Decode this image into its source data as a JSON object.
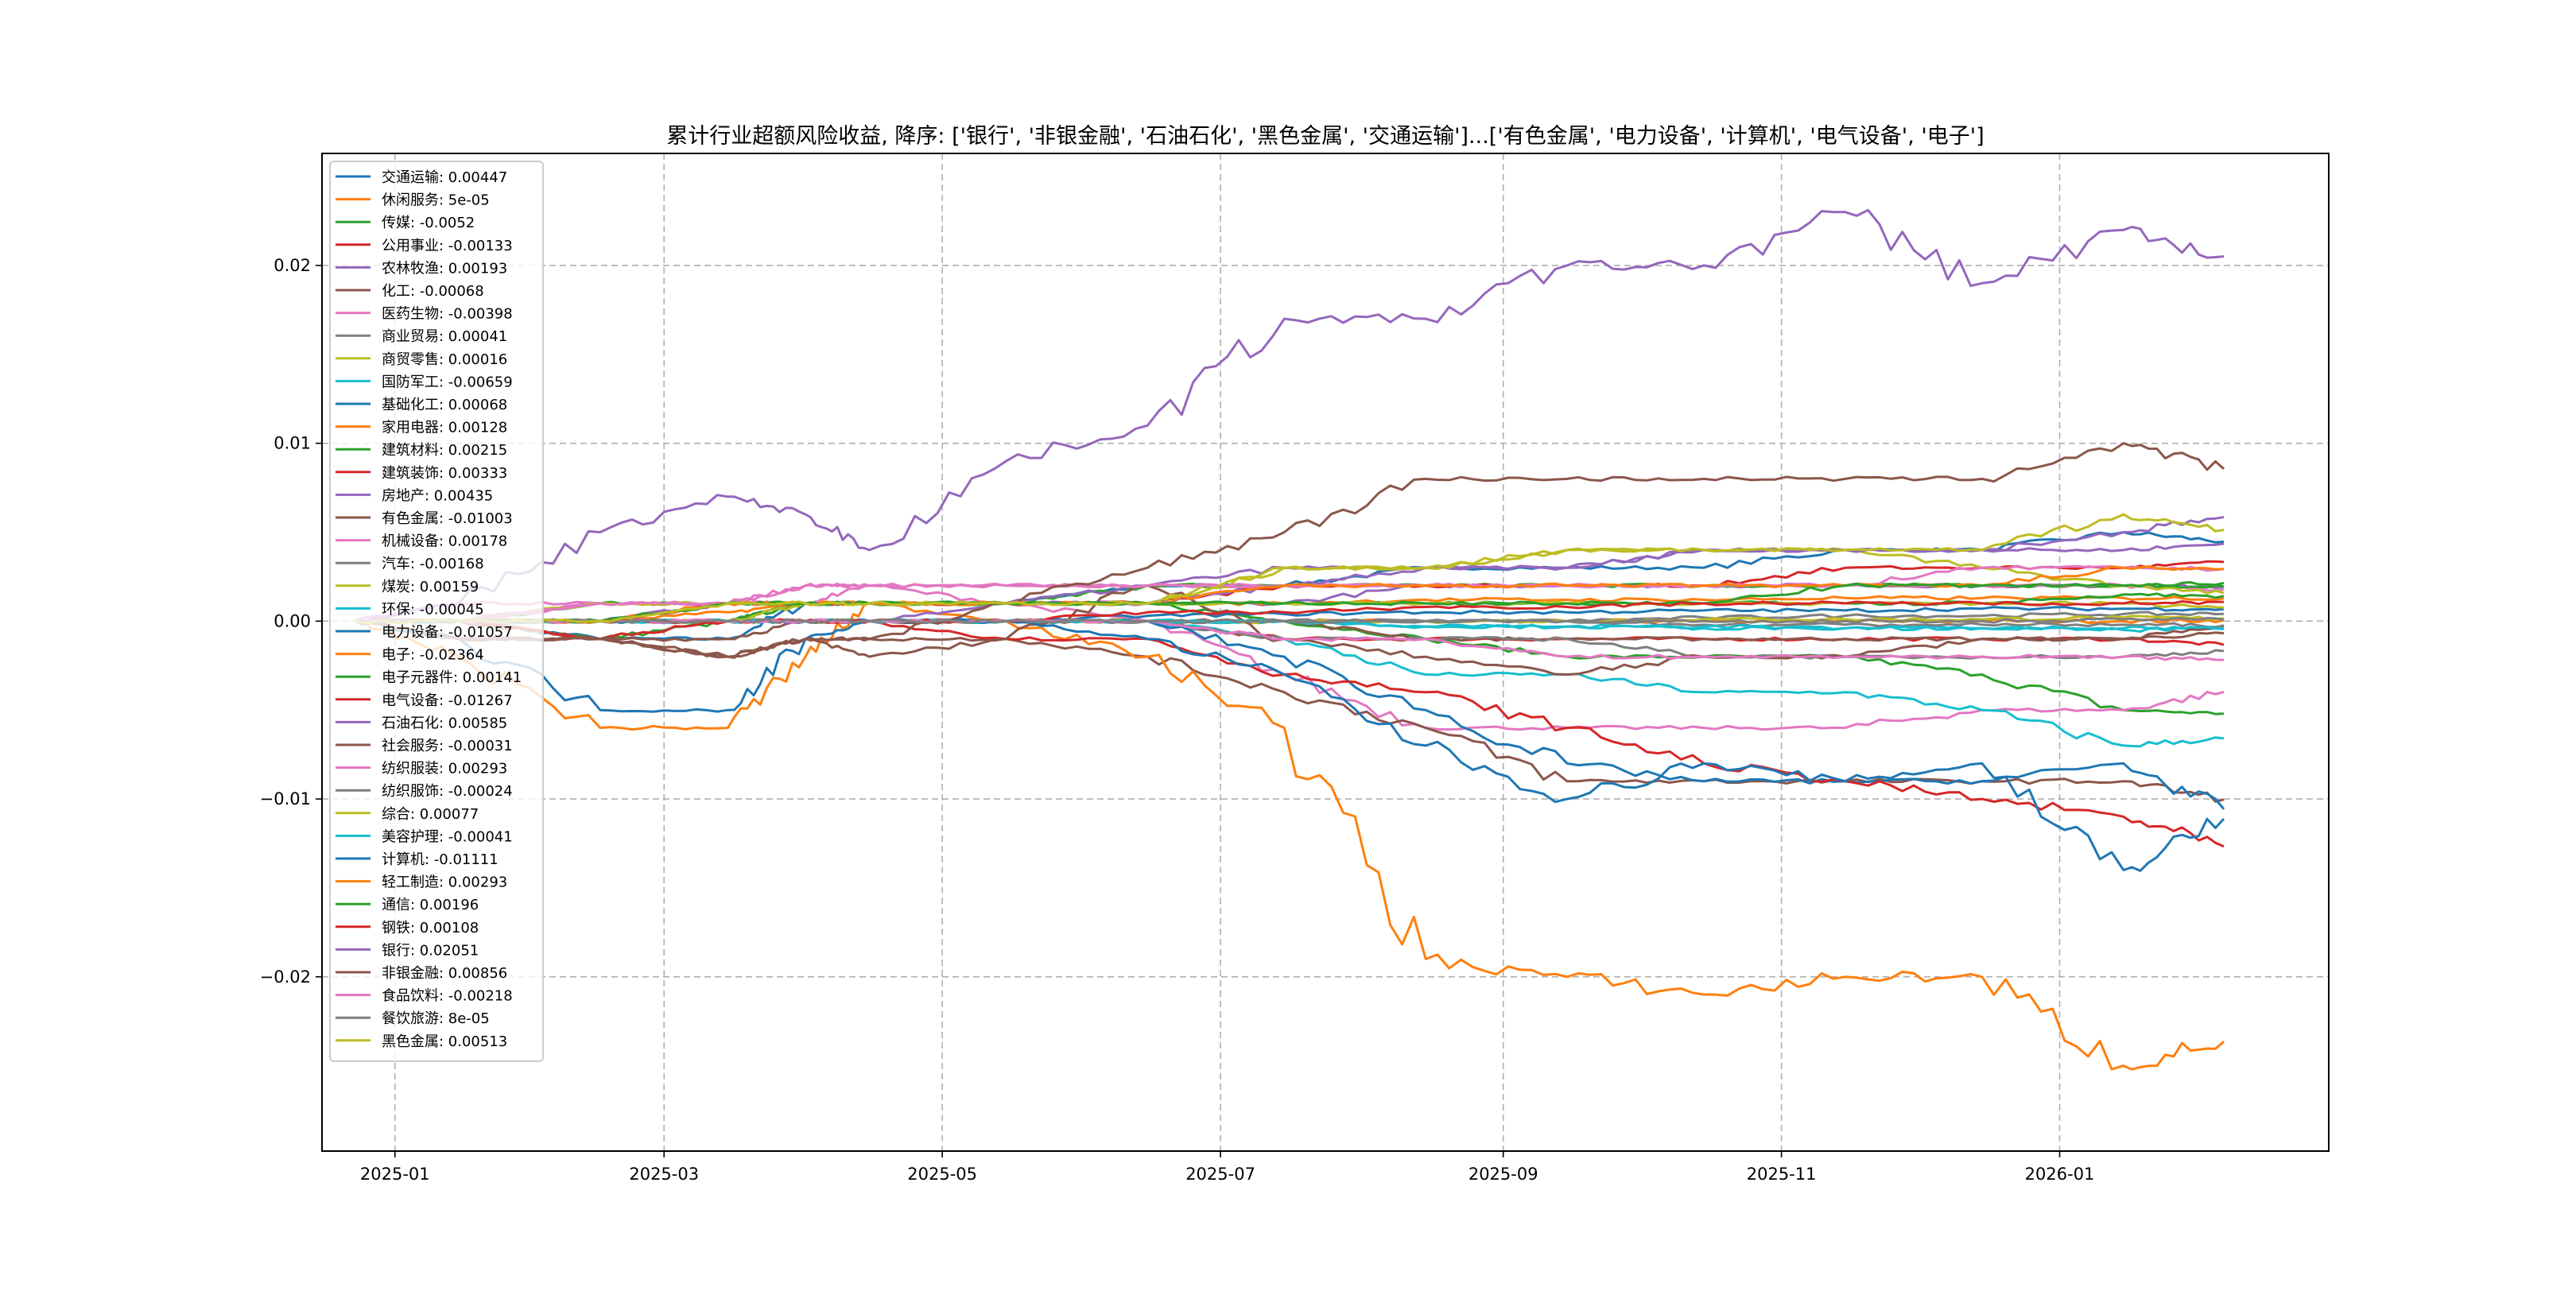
{
  "chart_data": {
    "type": "line",
    "title": "累计行业超额风险收益,  降序: ['银行', '非银金融', '石油石化', '黑色金属', '交通运输']...['有色金属', '电力设备', '计算机', '电气设备', '电子']",
    "xlabel": "",
    "ylabel": "",
    "ylim": [
      -0.0298,
      0.0263
    ],
    "xlim": [
      "2024-12-16",
      "2026-03-01"
    ],
    "grid": true,
    "legend_position": "upper-left",
    "yticks": [
      {
        "value": 0.02,
        "label": "0.02"
      },
      {
        "value": 0.01,
        "label": "0.01"
      },
      {
        "value": 0.0,
        "label": "0.00"
      },
      {
        "value": -0.01,
        "label": "−0.01"
      },
      {
        "value": -0.02,
        "label": "−0.02"
      }
    ],
    "xticks": [
      {
        "value": "2025-01-01",
        "label": "2025-01"
      },
      {
        "value": "2025-03-01",
        "label": "2025-03"
      },
      {
        "value": "2025-05-01",
        "label": "2025-05"
      },
      {
        "value": "2025-07-01",
        "label": "2025-07"
      },
      {
        "value": "2025-09-01",
        "label": "2025-09"
      },
      {
        "value": "2025-11-01",
        "label": "2025-11"
      },
      {
        "value": "2026-01-01",
        "label": "2026-01"
      }
    ],
    "x": [
      "2024-12-23",
      "2025-01-15",
      "2025-02-15",
      "2025-03-15",
      "2025-04-01",
      "2025-04-15",
      "2025-05-15",
      "2025-06-15",
      "2025-07-15",
      "2025-08-15",
      "2025-09-15",
      "2025-10-15",
      "2025-11-15",
      "2025-12-15",
      "2026-01-15",
      "2026-02-06"
    ],
    "series": [
      {
        "name": "交通运输",
        "label": "交通运输: 0.00447",
        "color": "#1f77b4",
        "values": [
          0,
          0,
          -0.001,
          -0.001,
          0.001,
          0.001,
          0.001,
          0.002,
          0.002,
          0.003,
          0.003,
          0.003,
          0.004,
          0.004,
          0.005,
          0.00447
        ]
      },
      {
        "name": "休闲服务",
        "label": "休闲服务: 5e-05",
        "color": "#ff7f0e",
        "values": [
          0,
          0,
          0,
          0,
          0,
          0,
          0,
          0,
          0,
          0,
          0,
          0,
          0,
          0,
          0,
          5e-05
        ]
      },
      {
        "name": "传媒",
        "label": "传媒: -0.0052",
        "color": "#2ca02c",
        "values": [
          0,
          0,
          -0.001,
          0,
          0.001,
          0.001,
          0.001,
          0.001,
          0,
          -0.001,
          -0.002,
          -0.002,
          -0.002,
          -0.003,
          -0.005,
          -0.0052
        ]
      },
      {
        "name": "公用事业",
        "label": "公用事业: -0.00133",
        "color": "#d62728",
        "values": [
          0,
          0,
          0,
          0,
          0,
          0,
          0,
          0,
          -0.001,
          -0.001,
          -0.001,
          -0.001,
          -0.001,
          -0.001,
          -0.001,
          -0.00133
        ]
      },
      {
        "name": "农林牧渔",
        "label": "农林牧渔: 0.00193",
        "color": "#9467bd",
        "values": [
          0,
          0,
          0,
          0.001,
          0.001,
          0.001,
          0.001,
          0.001,
          0.001,
          0.002,
          0.002,
          0.002,
          0.002,
          0.002,
          0.002,
          0.00193
        ]
      },
      {
        "name": "化工",
        "label": "化工: -0.00068",
        "color": "#8c564b",
        "values": [
          0,
          -0.001,
          -0.001,
          -0.001,
          0,
          0,
          0,
          0,
          0,
          -0.001,
          -0.001,
          -0.001,
          -0.001,
          -0.001,
          -0.001,
          -0.00068
        ]
      },
      {
        "name": "医药生物",
        "label": "医药生物: -0.00398",
        "color": "#e377c2",
        "values": [
          0,
          0.001,
          0.001,
          0.001,
          0.002,
          0.002,
          0.001,
          0,
          -0.003,
          -0.006,
          -0.006,
          -0.006,
          -0.006,
          -0.005,
          -0.005,
          -0.00398
        ]
      },
      {
        "name": "商业贸易",
        "label": "商业贸易: 0.00041",
        "color": "#7f7f7f",
        "values": [
          0,
          0,
          0,
          0,
          0,
          0,
          0,
          0,
          0,
          0,
          0,
          0.0002,
          0.0003,
          0.0003,
          0.0004,
          0.00041
        ]
      },
      {
        "name": "商贸零售",
        "label": "商贸零售: 0.00016",
        "color": "#bcbd22",
        "values": [
          0,
          0,
          0,
          0,
          0,
          0,
          0,
          0,
          0,
          0,
          0,
          0.0001,
          0.0001,
          0.0001,
          0.0002,
          0.00016
        ]
      },
      {
        "name": "国防军工",
        "label": "国防军工: -0.00659",
        "color": "#17becf",
        "values": [
          0,
          0,
          0,
          0,
          0,
          0,
          0,
          0,
          -0.001,
          -0.003,
          -0.003,
          -0.004,
          -0.004,
          -0.005,
          -0.007,
          -0.00659
        ]
      },
      {
        "name": "基础化工",
        "label": "基础化工: 0.00068",
        "color": "#1f77b4",
        "values": [
          0,
          0,
          0,
          0,
          0,
          0,
          0,
          0.0003,
          0.0004,
          0.0005,
          0.0005,
          0.0006,
          0.0006,
          0.0007,
          0.0007,
          0.00068
        ]
      },
      {
        "name": "家用电器",
        "label": "家用电器: 0.00128",
        "color": "#ff7f0e",
        "values": [
          0,
          0,
          0,
          0.0005,
          0.001,
          0.001,
          0.001,
          0.001,
          0.001,
          0.0012,
          0.0012,
          0.0012,
          0.0013,
          0.0013,
          0.0013,
          0.00128
        ]
      },
      {
        "name": "建筑材料",
        "label": "建筑材料: 0.00215",
        "color": "#2ca02c",
        "values": [
          0,
          0,
          0.001,
          0.001,
          0.001,
          0.001,
          0.001,
          0.002,
          0.002,
          0.002,
          0.002,
          0.002,
          0.002,
          0.002,
          0.002,
          0.00215
        ]
      },
      {
        "name": "建筑装饰",
        "label": "建筑装饰: 0.00333",
        "color": "#d62728",
        "values": [
          0,
          0,
          0,
          0.001,
          0.001,
          0.001,
          0.001,
          0.001,
          0.002,
          0.002,
          0.002,
          0.002,
          0.003,
          0.003,
          0.003,
          0.00333
        ]
      },
      {
        "name": "房地产",
        "label": "房地产: 0.00435",
        "color": "#9467bd",
        "values": [
          0,
          0,
          0,
          0.001,
          0.001,
          0.001,
          0.001,
          0.002,
          0.003,
          0.003,
          0.003,
          0.004,
          0.004,
          0.004,
          0.004,
          0.00435
        ]
      },
      {
        "name": "有色金属",
        "label": "有色金属: -0.01003",
        "color": "#8c564b",
        "values": [
          0,
          0,
          -0.001,
          -0.002,
          -0.001,
          -0.001,
          -0.001,
          -0.002,
          -0.004,
          -0.006,
          -0.009,
          -0.009,
          -0.009,
          -0.009,
          -0.009,
          -0.01003
        ]
      },
      {
        "name": "机械设备",
        "label": "机械设备: 0.00178",
        "color": "#e377c2",
        "values": [
          0,
          0,
          0.001,
          0.001,
          0.002,
          0.002,
          0.002,
          0.002,
          0.002,
          0.002,
          0.002,
          0.002,
          0.002,
          0.002,
          0.002,
          0.00178
        ]
      },
      {
        "name": "汽车",
        "label": "汽车: -0.00168",
        "color": "#7f7f7f",
        "values": [
          0,
          0,
          0,
          0,
          0,
          0,
          0,
          0,
          -0.001,
          -0.001,
          -0.001,
          -0.002,
          -0.002,
          -0.002,
          -0.002,
          -0.00168
        ]
      },
      {
        "name": "煤炭",
        "label": "煤炭: 0.00159",
        "color": "#bcbd22",
        "values": [
          0,
          0,
          0.001,
          0.001,
          0.001,
          0.001,
          0.001,
          0.001,
          0.003,
          0.003,
          0.004,
          0.004,
          0.004,
          0.003,
          0.002,
          0.00159
        ]
      },
      {
        "name": "环保",
        "label": "环保: -0.00045",
        "color": "#17becf",
        "values": [
          0,
          0,
          0,
          0,
          0,
          0,
          0,
          0,
          0,
          -0.0003,
          -0.0003,
          -0.0004,
          -0.0004,
          -0.0004,
          -0.0005,
          -0.00045
        ]
      },
      {
        "name": "电力设备",
        "label": "电力设备: -0.01057",
        "color": "#1f77b4",
        "values": [
          0,
          0,
          0,
          0,
          0,
          0,
          0,
          0,
          -0.002,
          -0.005,
          -0.008,
          -0.009,
          -0.009,
          -0.009,
          -0.008,
          -0.01057
        ]
      },
      {
        "name": "电子",
        "label": "电子: -0.02364",
        "color": "#ff7f0e",
        "values": [
          0,
          -0.002,
          -0.006,
          -0.006,
          -0.002,
          0.001,
          0,
          -0.002,
          -0.006,
          -0.019,
          -0.02,
          -0.021,
          -0.02,
          -0.02,
          -0.025,
          -0.02364
        ]
      },
      {
        "name": "电子元器件",
        "label": "电子元器件: 0.00141",
        "color": "#2ca02c",
        "values": [
          0,
          0,
          0,
          0,
          0.001,
          0.001,
          0.001,
          0.001,
          0.001,
          0.001,
          0.001,
          0.001,
          0.001,
          0.001,
          0.0015,
          0.00141
        ]
      },
      {
        "name": "电气设备",
        "label": "电气设备: -0.01267",
        "color": "#d62728",
        "values": [
          0,
          0,
          -0.001,
          0,
          0,
          0,
          -0.001,
          -0.001,
          -0.003,
          -0.004,
          -0.006,
          -0.008,
          -0.009,
          -0.01,
          -0.011,
          -0.01267
        ]
      },
      {
        "name": "石油石化",
        "label": "石油石化: 0.00585",
        "color": "#9467bd",
        "values": [
          0,
          0,
          0,
          0,
          0,
          0,
          0.001,
          0.001,
          0.002,
          0.003,
          0.003,
          0.004,
          0.004,
          0.004,
          0.005,
          0.00585
        ]
      },
      {
        "name": "社会服务",
        "label": "社会服务: -0.00031",
        "color": "#8c564b",
        "values": [
          0,
          -0.001,
          -0.001,
          -0.002,
          -0.001,
          -0.002,
          -0.001,
          0.002,
          -0.001,
          -0.002,
          -0.003,
          -0.002,
          -0.002,
          -0.001,
          -0.001,
          -0.00031
        ]
      },
      {
        "name": "纺织服装",
        "label": "纺织服装: 0.00293",
        "color": "#e377c2",
        "values": [
          0,
          0,
          0.001,
          0.001,
          0.001,
          0.002,
          0.002,
          0.002,
          0.002,
          0.002,
          0.002,
          0.002,
          0.002,
          0.003,
          0.003,
          0.00293
        ]
      },
      {
        "name": "纺织服饰",
        "label": "纺织服饰: -0.00024",
        "color": "#7f7f7f",
        "values": [
          0,
          0,
          0,
          0,
          0,
          0,
          0,
          0,
          0,
          0,
          0,
          -0.0002,
          -0.0002,
          -0.0002,
          -0.0002,
          -0.00024
        ]
      },
      {
        "name": "综合",
        "label": "综合: 0.00077",
        "color": "#bcbd22",
        "values": [
          0,
          0,
          0,
          0,
          0.001,
          0.001,
          0.001,
          0.001,
          0.001,
          0.001,
          0.001,
          0.001,
          0.001,
          0.001,
          0.001,
          0.00077
        ]
      },
      {
        "name": "美容护理",
        "label": "美容护理: -0.00041",
        "color": "#17becf",
        "values": [
          0,
          0,
          0,
          0,
          0,
          0,
          0,
          0,
          0,
          -0.0003,
          -0.0003,
          -0.0003,
          -0.0004,
          -0.0004,
          -0.0004,
          -0.00041
        ]
      },
      {
        "name": "计算机",
        "label": "计算机: -0.01111",
        "color": "#1f77b4",
        "values": [
          0,
          -0.001,
          -0.005,
          -0.005,
          -0.001,
          0,
          0,
          -0.001,
          -0.003,
          -0.007,
          -0.01,
          -0.008,
          -0.009,
          -0.008,
          -0.014,
          -0.01111
        ]
      },
      {
        "name": "轻工制造",
        "label": "轻工制造: 0.00293",
        "color": "#ff7f0e",
        "values": [
          0,
          0,
          0,
          0.001,
          0.001,
          0.001,
          0.001,
          0.001,
          0.002,
          0.002,
          0.002,
          0.002,
          0.002,
          0.002,
          0.003,
          0.00293
        ]
      },
      {
        "name": "通信",
        "label": "通信: 0.00196",
        "color": "#2ca02c",
        "values": [
          0,
          0,
          0,
          0.001,
          0.001,
          0.001,
          0.001,
          0.001,
          0.001,
          0.001,
          0.001,
          0.001,
          0.002,
          0.002,
          0.002,
          0.00196
        ]
      },
      {
        "name": "钢铁",
        "label": "钢铁: 0.00108",
        "color": "#d62728",
        "values": [
          0,
          0,
          0,
          0,
          0,
          0,
          0,
          0.0005,
          0.0005,
          0.0008,
          0.0008,
          0.001,
          0.001,
          0.001,
          0.001,
          0.00108
        ]
      },
      {
        "name": "银行",
        "label": "银行: 0.02051",
        "color": "#9467bd",
        "values": [
          0,
          0.001,
          0.005,
          0.007,
          0.006,
          0.004,
          0.009,
          0.011,
          0.017,
          0.017,
          0.02,
          0.02,
          0.023,
          0.019,
          0.022,
          0.02051
        ]
      },
      {
        "name": "非银金融",
        "label": "非银金融: 0.00856",
        "color": "#8c564b",
        "values": [
          0,
          -0.001,
          -0.001,
          -0.002,
          -0.001,
          -0.001,
          0.001,
          0.003,
          0.005,
          0.008,
          0.008,
          0.008,
          0.008,
          0.008,
          0.01,
          0.00856
        ]
      },
      {
        "name": "食品饮料",
        "label": "食品饮料: -0.00218",
        "color": "#e377c2",
        "values": [
          0,
          0,
          0,
          0,
          0,
          0,
          0,
          0,
          -0.001,
          -0.001,
          -0.002,
          -0.002,
          -0.002,
          -0.002,
          -0.002,
          -0.00218
        ]
      },
      {
        "name": "餐饮旅游",
        "label": "餐饮旅游: 8e-05",
        "color": "#7f7f7f",
        "values": [
          0,
          0,
          0,
          0,
          0,
          0,
          0,
          0,
          0,
          0,
          0,
          0,
          0,
          0,
          0.0001,
          8e-05
        ]
      },
      {
        "name": "黑色金属",
        "label": "黑色金属: 0.00513",
        "color": "#bcbd22",
        "values": [
          0,
          0,
          0,
          0.001,
          0.001,
          0.001,
          0.001,
          0.001,
          0.003,
          0.003,
          0.004,
          0.004,
          0.004,
          0.004,
          0.006,
          0.00513
        ]
      }
    ]
  }
}
